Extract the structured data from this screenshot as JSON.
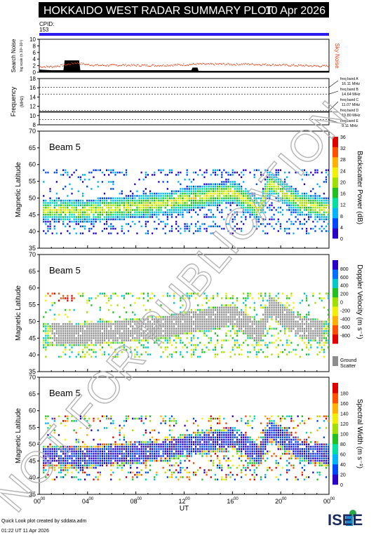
{
  "header": {
    "title": "HOKKAIDO WEST RADAR SUMMARY PLOT",
    "date": "10 Apr 2026"
  },
  "cpid": {
    "label": "CPID:",
    "value": "153"
  },
  "watermark": "NOT FOR PUBLICATION",
  "footer": {
    "line1": "Quick Look plot created by sddata.adm",
    "line2": "01:22 UT 11 Apr 2026",
    "logo": "ISEE"
  },
  "colors": {
    "cpid_bar": "#2b1df0",
    "sky_noise": "#e0401a",
    "search_noise": "#000000",
    "ground_scatter": "#8c8c8c"
  },
  "chart_data": [
    {
      "type": "line",
      "id": "noise",
      "ylabel": "Search Noise",
      "ylabel_sub": "log scale (n.10²-10⁴)",
      "right_label": "Sky Noise",
      "ylim": [
        0,
        10
      ],
      "yticks": [
        "0",
        "2",
        "4",
        "6",
        "8",
        "10"
      ],
      "series": [
        {
          "name": "Sky Noise",
          "x": [
            0,
            1,
            2,
            3,
            4,
            5,
            6,
            7,
            8,
            9,
            10,
            11,
            12,
            13,
            14,
            15,
            16,
            17,
            18,
            19,
            20,
            21,
            22,
            23,
            24
          ],
          "values": [
            1.8,
            1.8,
            2.2,
            3.0,
            2.4,
            2.2,
            2.2,
            2.3,
            2.2,
            2.2,
            2.2,
            2.3,
            2.4,
            2.6,
            2.5,
            2.6,
            2.5,
            2.6,
            2.5,
            2.4,
            2.3,
            2.2,
            2.1,
            2.0,
            2.0
          ]
        },
        {
          "name": "Search Noise",
          "x": [
            0,
            1,
            2,
            2.1,
            3.3,
            3.4,
            12.6,
            12.7,
            13.1,
            13.2,
            24
          ],
          "values": [
            0.8,
            0.6,
            0.6,
            3.6,
            3.6,
            0.6,
            0.6,
            1.4,
            1.4,
            0.4,
            0.4
          ]
        }
      ]
    },
    {
      "type": "line",
      "id": "frequency",
      "ylabel": "Frequency",
      "yunit": "(MHz)",
      "ylim": [
        8,
        18
      ],
      "yticks": [
        "8",
        "10",
        "12",
        "14",
        "16",
        "18"
      ],
      "bands": [
        {
          "label": "freq band A",
          "value": "16.11 MHz",
          "mhz": 16.11
        },
        {
          "label": "freq band B",
          "value": "14.64 MHz",
          "mhz": 14.64
        },
        {
          "label": "freq band C",
          "value": "11.07 MHz",
          "mhz": 11.07
        },
        {
          "label": "freq band D",
          "value": "10.80 MHz",
          "mhz": 10.8
        },
        {
          "label": "freq band E",
          "value": "9.11 MHz",
          "mhz": 9.11
        }
      ],
      "series": [
        {
          "x": [
            0,
            24
          ],
          "values": [
            10.8,
            10.8
          ]
        }
      ]
    },
    {
      "type": "heatmap",
      "id": "power",
      "title": "Beam  5",
      "ylabel": "Magnetic Latitude",
      "ylim": [
        35,
        70
      ],
      "yticks": [
        "35",
        "40",
        "45",
        "50",
        "55",
        "60",
        "65",
        "70"
      ],
      "colorbar_label": "Backscatter Power (dB)",
      "colorbar_ticks": [
        "0",
        "4",
        "8",
        "12",
        "16",
        "20",
        "24",
        "28",
        "32",
        "36"
      ],
      "colorbar_range": [
        0,
        36
      ],
      "colorscale": [
        "#2a00c8",
        "#0048ff",
        "#00b4ff",
        "#00e0a0",
        "#20c020",
        "#a0e000",
        "#f0f000",
        "#ffb000",
        "#ff5000",
        "#e00000"
      ]
    },
    {
      "type": "heatmap",
      "id": "velocity",
      "title": "Beam  5",
      "ylabel": "Magnetic Latitude",
      "ylim": [
        35,
        70
      ],
      "yticks": [
        "35",
        "40",
        "45",
        "50",
        "55",
        "60",
        "65",
        "70"
      ],
      "colorbar_label": "Doppler Velocity (m s⁻¹)",
      "colorbar_ticks": [
        "-800",
        "-600",
        "-400",
        "-200",
        "0",
        "200",
        "400",
        "600",
        "800"
      ],
      "colorbar_range": [
        -1000,
        1000
      ],
      "ground_scatter_label": [
        "Ground",
        "Scatter"
      ],
      "colorscale": [
        "#e00000",
        "#ff5000",
        "#ffb000",
        "#f0f000",
        "#a0e000",
        "#20c020",
        "#00c8c8",
        "#0070ff",
        "#2a00c8"
      ]
    },
    {
      "type": "heatmap",
      "id": "width",
      "title": "Beam  5",
      "ylabel": "Magnetic Latitude",
      "ylim": [
        35,
        70
      ],
      "yticks": [
        "35",
        "40",
        "45",
        "50",
        "55",
        "60",
        "65",
        "70"
      ],
      "colorbar_label": "Spectral Width (m s⁻¹)",
      "colorbar_ticks": [
        "0",
        "20",
        "40",
        "60",
        "80",
        "100",
        "120",
        "140",
        "160",
        "180"
      ],
      "colorbar_range": [
        0,
        200
      ],
      "colorscale": [
        "#2a00c8",
        "#0048ff",
        "#00b4ff",
        "#00e0a0",
        "#20c020",
        "#a0e000",
        "#f0f000",
        "#ffb000",
        "#ff5000",
        "#e00000"
      ],
      "xlabel": "UT",
      "xticks": [
        {
          "h": "00",
          "m": "00"
        },
        {
          "h": "04",
          "m": "00"
        },
        {
          "h": "08",
          "m": "00"
        },
        {
          "h": "12",
          "m": "00"
        },
        {
          "h": "16",
          "m": "00"
        },
        {
          "h": "20",
          "m": "00"
        },
        {
          "h": "00",
          "m": "00"
        }
      ],
      "xlim_hours": [
        0,
        24
      ]
    }
  ]
}
